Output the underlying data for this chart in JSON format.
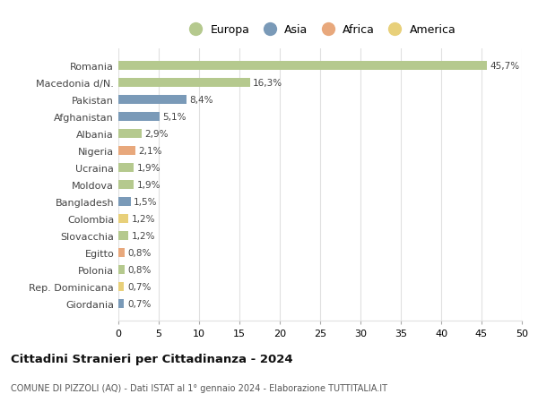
{
  "countries": [
    "Romania",
    "Macedonia d/N.",
    "Pakistan",
    "Afghanistan",
    "Albania",
    "Nigeria",
    "Ucraina",
    "Moldova",
    "Bangladesh",
    "Colombia",
    "Slovacchia",
    "Egitto",
    "Polonia",
    "Rep. Dominicana",
    "Giordania"
  ],
  "values": [
    45.7,
    16.3,
    8.4,
    5.1,
    2.9,
    2.1,
    1.9,
    1.9,
    1.5,
    1.2,
    1.2,
    0.8,
    0.8,
    0.7,
    0.7
  ],
  "labels": [
    "45,7%",
    "16,3%",
    "8,4%",
    "5,1%",
    "2,9%",
    "2,1%",
    "1,9%",
    "1,9%",
    "1,5%",
    "1,2%",
    "1,2%",
    "0,8%",
    "0,8%",
    "0,7%",
    "0,7%"
  ],
  "continents": [
    "Europa",
    "Europa",
    "Asia",
    "Asia",
    "Europa",
    "Africa",
    "Europa",
    "Europa",
    "Asia",
    "America",
    "Europa",
    "Africa",
    "Europa",
    "America",
    "Asia"
  ],
  "continent_colors": {
    "Europa": "#b5c98e",
    "Asia": "#7a9ab8",
    "Africa": "#e8a87c",
    "America": "#e8d07a"
  },
  "legend_order": [
    "Europa",
    "Asia",
    "Africa",
    "America"
  ],
  "title": "Cittadini Stranieri per Cittadinanza - 2024",
  "subtitle": "COMUNE DI PIZZOLI (AQ) - Dati ISTAT al 1° gennaio 2024 - Elaborazione TUTTITALIA.IT",
  "xlim": [
    0,
    50
  ],
  "xticks": [
    0,
    5,
    10,
    15,
    20,
    25,
    30,
    35,
    40,
    45,
    50
  ],
  "bg_color": "#ffffff",
  "grid_color": "#e0e0e0"
}
